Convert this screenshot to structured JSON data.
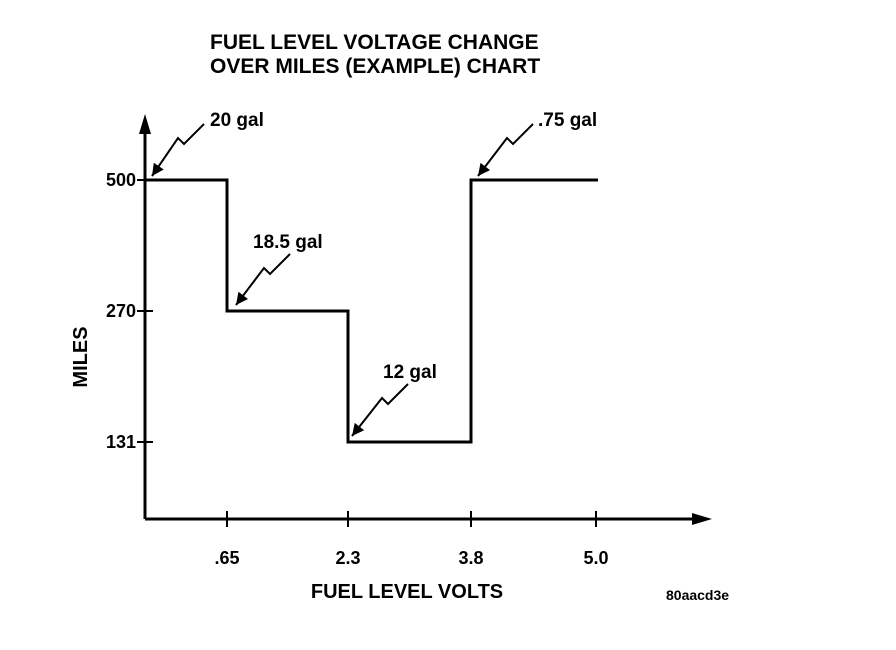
{
  "chart_data": {
    "type": "line",
    "step": true,
    "title_lines": [
      "FUEL LEVEL VOLTAGE CHANGE",
      "OVER MILES (EXAMPLE) CHART"
    ],
    "xlabel": "FUEL LEVEL VOLTS",
    "ylabel": "MILES",
    "x_ticks": [
      ".65",
      "2.3",
      "3.8",
      "5.0"
    ],
    "y_ticks": [
      "500",
      "270",
      "131"
    ],
    "series": [
      {
        "values": [
          500,
          270,
          131,
          500
        ],
        "segments": [
          {
            "x_start": 0,
            "x_end": 0.65,
            "y": 500
          },
          {
            "x_start": 0.65,
            "x_end": 2.3,
            "y": 270
          },
          {
            "x_start": 2.3,
            "x_end": 3.8,
            "y": 131
          },
          {
            "x_start": 3.8,
            "x_end": 5.0,
            "y": 500
          }
        ]
      }
    ],
    "annotations": [
      {
        "text": "20 gal",
        "x": 0,
        "y": 500
      },
      {
        "text": "18.5 gal",
        "x": 0.65,
        "y": 270
      },
      {
        "text": "12 gal",
        "x": 2.3,
        "y": 131
      },
      {
        "text": ".75 gal",
        "x": 3.8,
        "y": 500
      }
    ],
    "grid": false
  },
  "image_code": "80aacd3e"
}
